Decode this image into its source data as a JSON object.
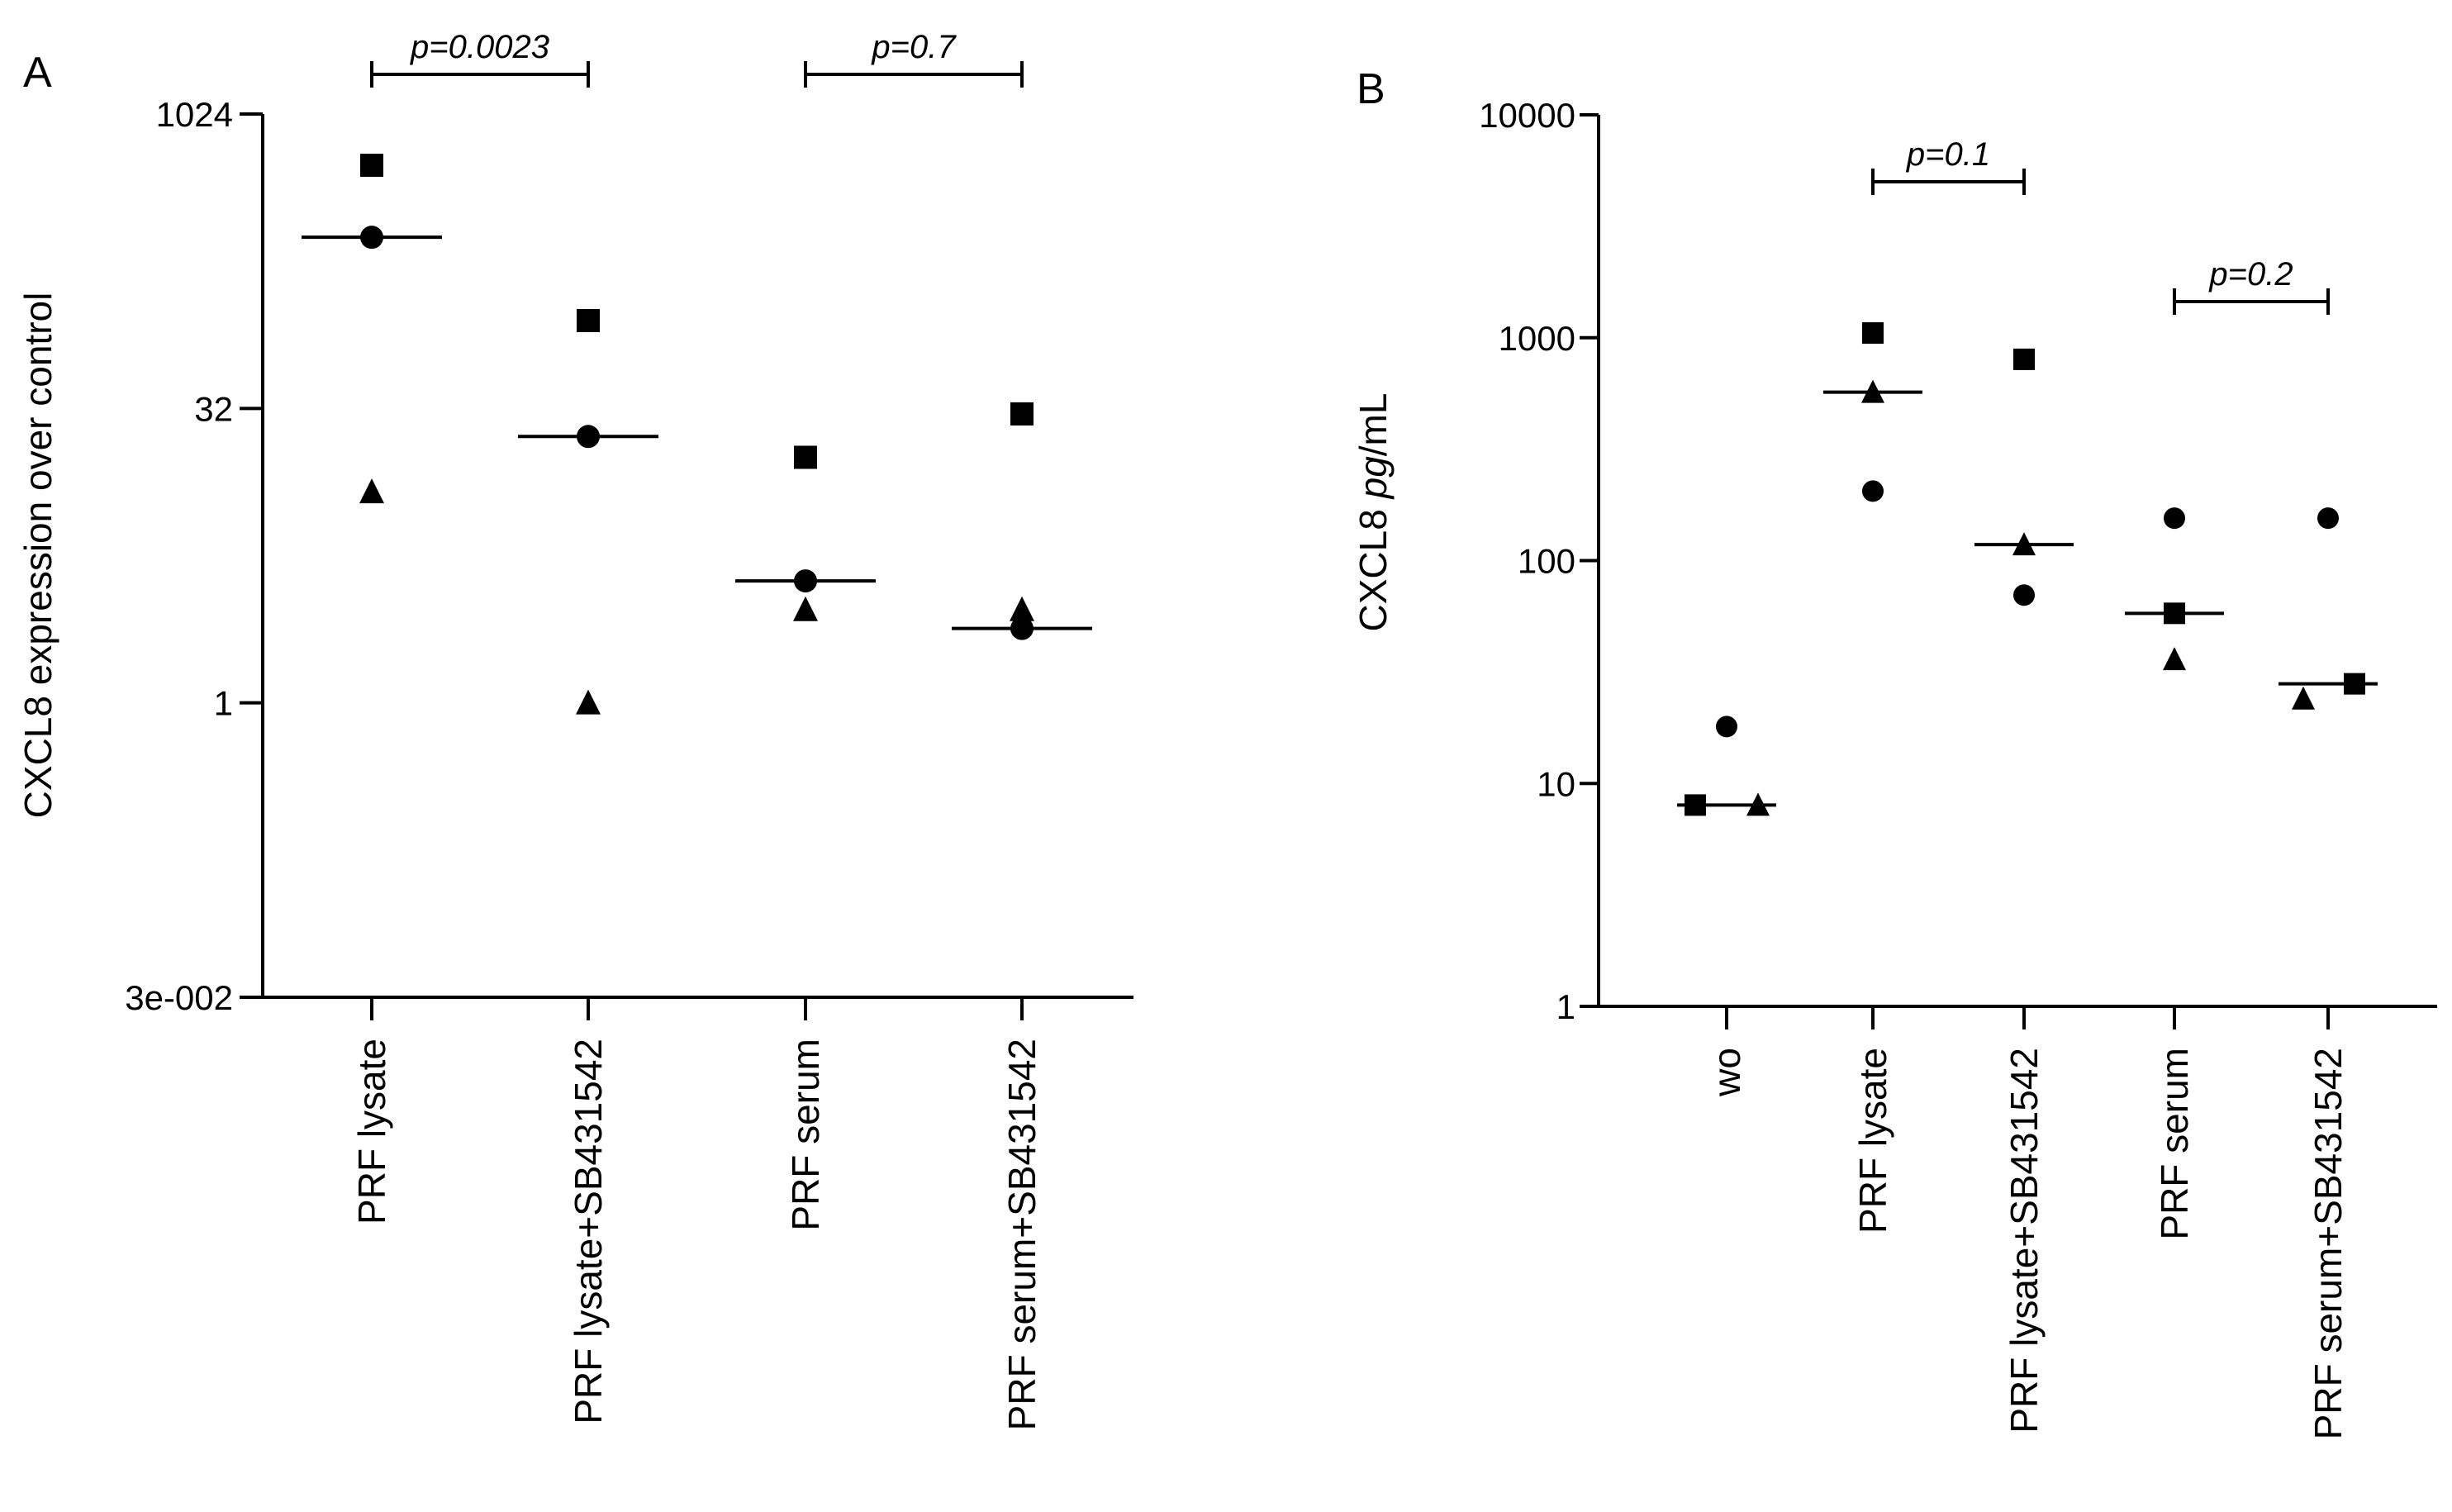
{
  "chart_data": [
    {
      "panel": "A",
      "type": "scatter",
      "scale": "log2",
      "ylabel": "CXCL8 expression over control",
      "ylim": [
        0.03125,
        1024
      ],
      "yticks": [
        {
          "value": 1024,
          "label": "1024"
        },
        {
          "value": 32,
          "label": "32"
        },
        {
          "value": 1,
          "label": "1"
        },
        {
          "value": 0.03125,
          "label": "3e-002"
        }
      ],
      "categories": [
        "PRF lysate",
        "PRF lysate+SB431542",
        "PRF serum",
        "PRF serum+SB431542"
      ],
      "series": [
        {
          "name": "square",
          "marker": "square",
          "values": [
            560,
            90,
            18,
            30
          ]
        },
        {
          "name": "circle",
          "marker": "circle",
          "values": [
            240,
            23,
            4.2,
            2.4
          ]
        },
        {
          "name": "triangle",
          "marker": "triangle",
          "values": [
            12,
            1,
            3,
            3
          ]
        }
      ],
      "medians": [
        240,
        23,
        4.2,
        2.4
      ],
      "comparisons": [
        {
          "from": 0,
          "to": 1,
          "label": "p=0.0023"
        },
        {
          "from": 2,
          "to": 3,
          "label": "p=0.7"
        }
      ]
    },
    {
      "panel": "B",
      "type": "scatter",
      "scale": "log10",
      "ylabel_prefix": "CXCL8 ",
      "ylabel_italic": "pg",
      "ylabel_suffix": "/mL",
      "ylim": [
        1,
        10000
      ],
      "yticks": [
        {
          "value": 10000,
          "label": "10000"
        },
        {
          "value": 1000,
          "label": "1000"
        },
        {
          "value": 100,
          "label": "100"
        },
        {
          "value": 10,
          "label": "10"
        },
        {
          "value": 1,
          "label": "1"
        }
      ],
      "categories": [
        "wo",
        "PRF lysate",
        "PRF lysate+SB431542",
        "PRF serum",
        "PRF serum+SB431542"
      ],
      "series": [
        {
          "name": "square",
          "marker": "square",
          "values": [
            8,
            1050,
            800,
            58,
            28
          ]
        },
        {
          "name": "circle",
          "marker": "circle",
          "values": [
            18,
            205,
            70,
            155,
            155
          ]
        },
        {
          "name": "triangle",
          "marker": "triangle",
          "values": [
            8,
            570,
            118,
            36,
            24
          ]
        }
      ],
      "medians": [
        8,
        570,
        118,
        58,
        28
      ],
      "comparisons": [
        {
          "from": 1,
          "to": 2,
          "label": "p=0.1"
        },
        {
          "from": 3,
          "to": 4,
          "label": "p=0.2"
        }
      ]
    }
  ]
}
